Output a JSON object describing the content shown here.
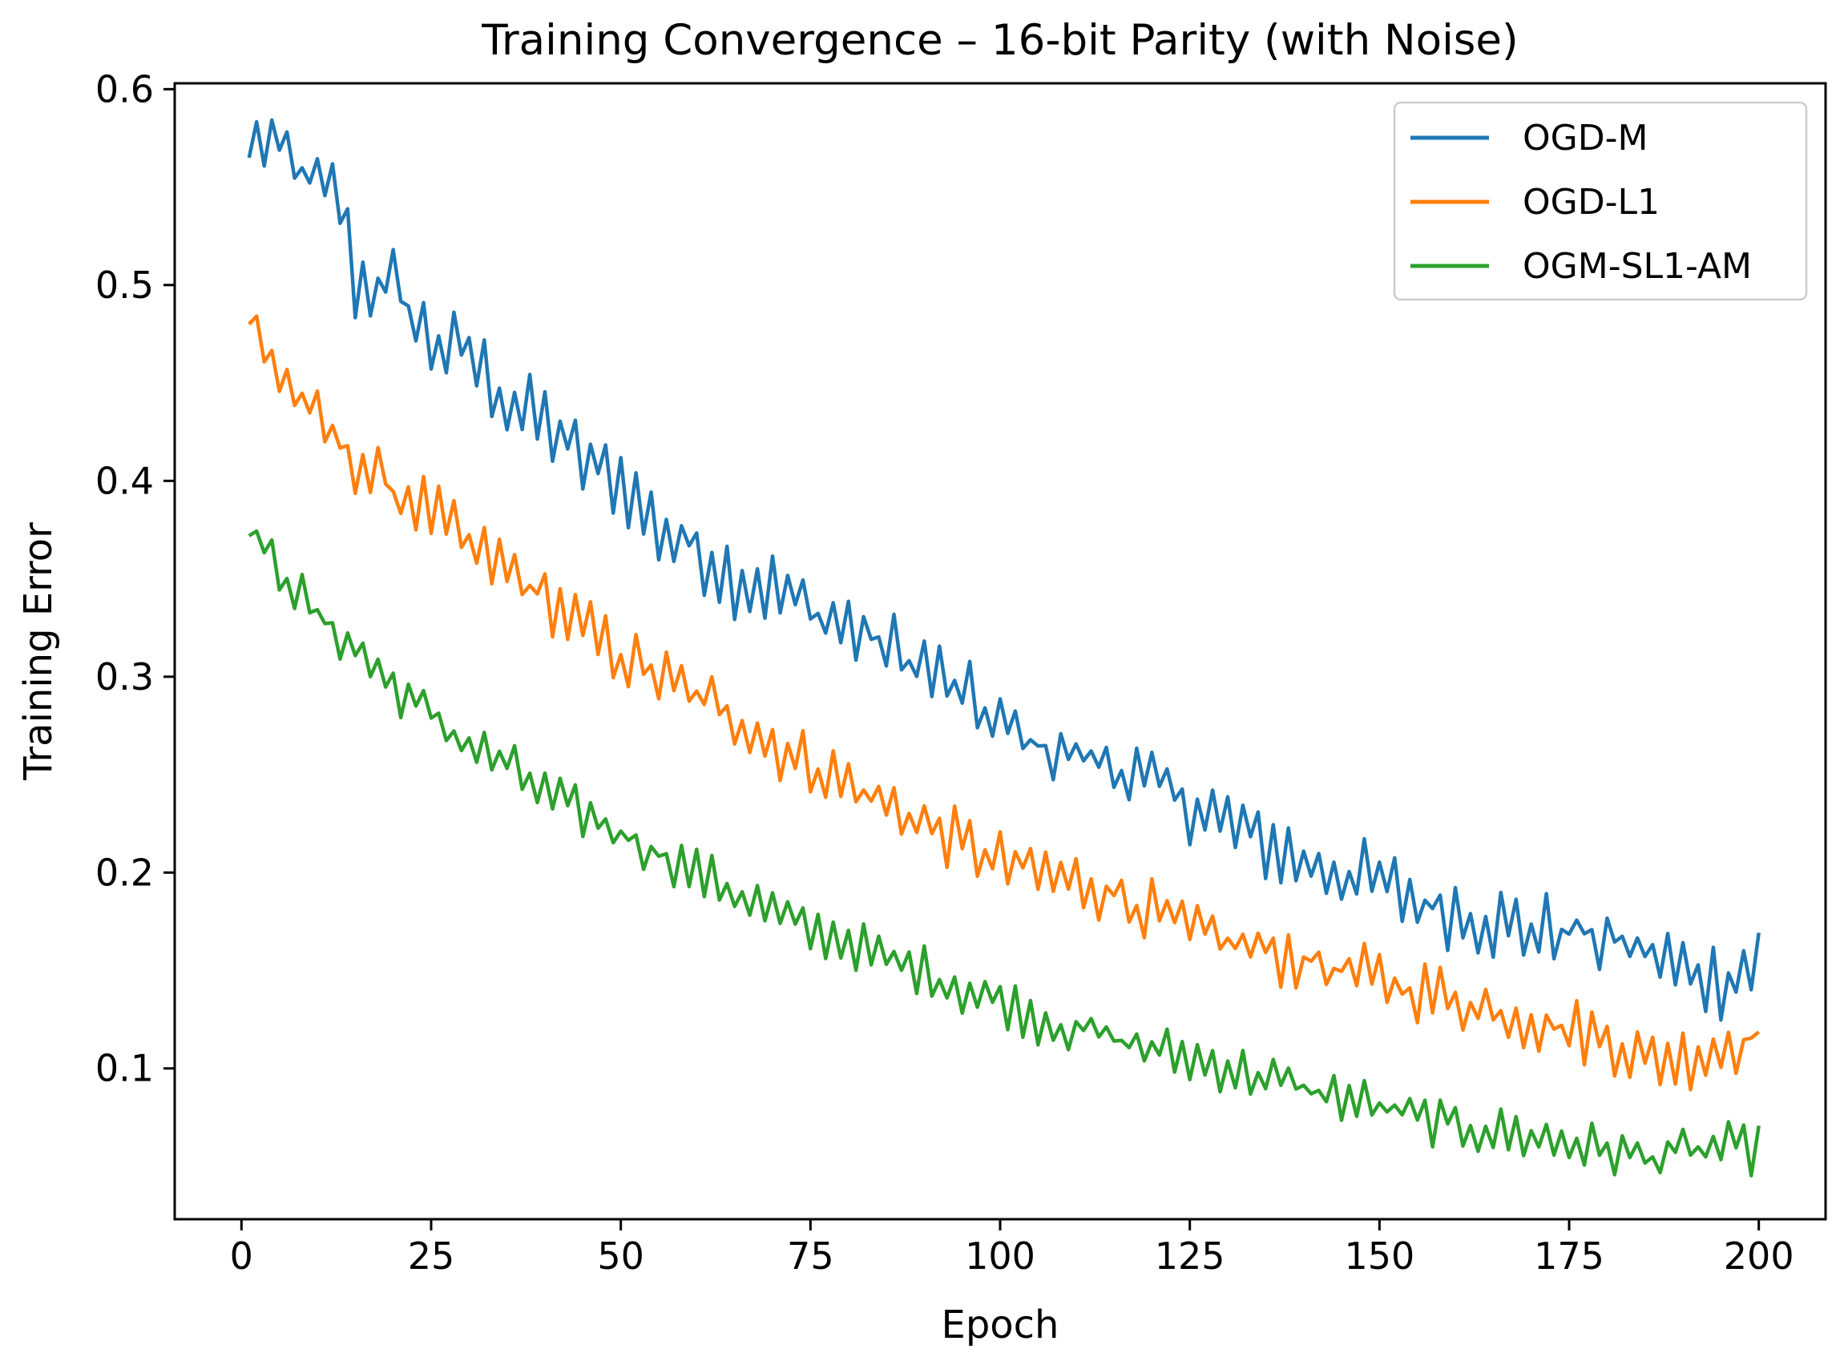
{
  "chart_data": {
    "type": "line",
    "title": "Training Convergence – 16-bit Parity (with Noise)",
    "xlabel": "Epoch",
    "ylabel": "Training Error",
    "xlim": [
      -8.8,
      208.8
    ],
    "ylim": [
      0.023,
      0.603
    ],
    "xticks": [
      0,
      25,
      50,
      75,
      100,
      125,
      150,
      175,
      200
    ],
    "yticks": [
      0.1,
      0.2,
      0.3,
      0.4,
      0.5,
      0.6
    ],
    "xtick_labels": [
      "0",
      "25",
      "50",
      "75",
      "100",
      "125",
      "150",
      "175",
      "200"
    ],
    "ytick_labels": [
      "0.1",
      "0.2",
      "0.3",
      "0.4",
      "0.5",
      "0.6"
    ],
    "legend_position": "top-right",
    "grid": false,
    "x_start": 1,
    "x_end": 200,
    "noise_amplitudes": [
      0.022,
      0.018,
      0.014
    ],
    "series": [
      {
        "name": "OGD-M",
        "color": "#1f77b4",
        "anchors": [
          [
            1,
            0.565
          ],
          [
            3,
            0.575
          ],
          [
            10,
            0.55
          ],
          [
            13,
            0.545
          ],
          [
            15,
            0.5
          ],
          [
            20,
            0.5
          ],
          [
            25,
            0.47
          ],
          [
            30,
            0.465
          ],
          [
            35,
            0.44
          ],
          [
            40,
            0.43
          ],
          [
            45,
            0.41
          ],
          [
            50,
            0.4
          ],
          [
            55,
            0.375
          ],
          [
            60,
            0.365
          ],
          [
            65,
            0.35
          ],
          [
            70,
            0.345
          ],
          [
            75,
            0.335
          ],
          [
            80,
            0.325
          ],
          [
            85,
            0.315
          ],
          [
            90,
            0.305
          ],
          [
            95,
            0.29
          ],
          [
            100,
            0.275
          ],
          [
            105,
            0.265
          ],
          [
            110,
            0.26
          ],
          [
            115,
            0.255
          ],
          [
            120,
            0.245
          ],
          [
            125,
            0.235
          ],
          [
            130,
            0.225
          ],
          [
            135,
            0.215
          ],
          [
            140,
            0.205
          ],
          [
            145,
            0.2
          ],
          [
            150,
            0.195
          ],
          [
            155,
            0.185
          ],
          [
            160,
            0.18
          ],
          [
            165,
            0.175
          ],
          [
            170,
            0.17
          ],
          [
            175,
            0.17
          ],
          [
            180,
            0.165
          ],
          [
            185,
            0.16
          ],
          [
            190,
            0.15
          ],
          [
            195,
            0.145
          ],
          [
            200,
            0.155
          ]
        ]
      },
      {
        "name": "OGD-L1",
        "color": "#ff7f0e",
        "anchors": [
          [
            1,
            0.48
          ],
          [
            5,
            0.455
          ],
          [
            10,
            0.43
          ],
          [
            15,
            0.41
          ],
          [
            20,
            0.395
          ],
          [
            25,
            0.385
          ],
          [
            30,
            0.365
          ],
          [
            35,
            0.355
          ],
          [
            40,
            0.34
          ],
          [
            45,
            0.325
          ],
          [
            50,
            0.31
          ],
          [
            55,
            0.3
          ],
          [
            60,
            0.29
          ],
          [
            65,
            0.28
          ],
          [
            70,
            0.265
          ],
          [
            75,
            0.255
          ],
          [
            80,
            0.245
          ],
          [
            85,
            0.235
          ],
          [
            90,
            0.225
          ],
          [
            95,
            0.215
          ],
          [
            100,
            0.205
          ],
          [
            105,
            0.2
          ],
          [
            110,
            0.195
          ],
          [
            115,
            0.19
          ],
          [
            120,
            0.18
          ],
          [
            125,
            0.17
          ],
          [
            130,
            0.165
          ],
          [
            135,
            0.16
          ],
          [
            140,
            0.155
          ],
          [
            145,
            0.15
          ],
          [
            150,
            0.145
          ],
          [
            155,
            0.14
          ],
          [
            160,
            0.135
          ],
          [
            165,
            0.13
          ],
          [
            170,
            0.125
          ],
          [
            175,
            0.12
          ],
          [
            180,
            0.115
          ],
          [
            185,
            0.105
          ],
          [
            190,
            0.105
          ],
          [
            195,
            0.11
          ],
          [
            200,
            0.118
          ]
        ]
      },
      {
        "name": "OGM-SL1-AM",
        "color": "#2ca02c",
        "anchors": [
          [
            1,
            0.372
          ],
          [
            5,
            0.355
          ],
          [
            10,
            0.33
          ],
          [
            15,
            0.315
          ],
          [
            20,
            0.295
          ],
          [
            25,
            0.28
          ],
          [
            30,
            0.265
          ],
          [
            35,
            0.255
          ],
          [
            40,
            0.24
          ],
          [
            45,
            0.23
          ],
          [
            50,
            0.22
          ],
          [
            55,
            0.21
          ],
          [
            60,
            0.2
          ],
          [
            65,
            0.19
          ],
          [
            70,
            0.18
          ],
          [
            75,
            0.17
          ],
          [
            80,
            0.165
          ],
          [
            85,
            0.155
          ],
          [
            90,
            0.15
          ],
          [
            95,
            0.14
          ],
          [
            100,
            0.135
          ],
          [
            105,
            0.125
          ],
          [
            110,
            0.12
          ],
          [
            115,
            0.115
          ],
          [
            120,
            0.11
          ],
          [
            125,
            0.105
          ],
          [
            130,
            0.1
          ],
          [
            135,
            0.095
          ],
          [
            140,
            0.09
          ],
          [
            145,
            0.085
          ],
          [
            150,
            0.08
          ],
          [
            155,
            0.075
          ],
          [
            160,
            0.07
          ],
          [
            165,
            0.068
          ],
          [
            170,
            0.065
          ],
          [
            175,
            0.062
          ],
          [
            180,
            0.058
          ],
          [
            185,
            0.055
          ],
          [
            190,
            0.057
          ],
          [
            195,
            0.06
          ],
          [
            200,
            0.058
          ]
        ]
      }
    ]
  }
}
